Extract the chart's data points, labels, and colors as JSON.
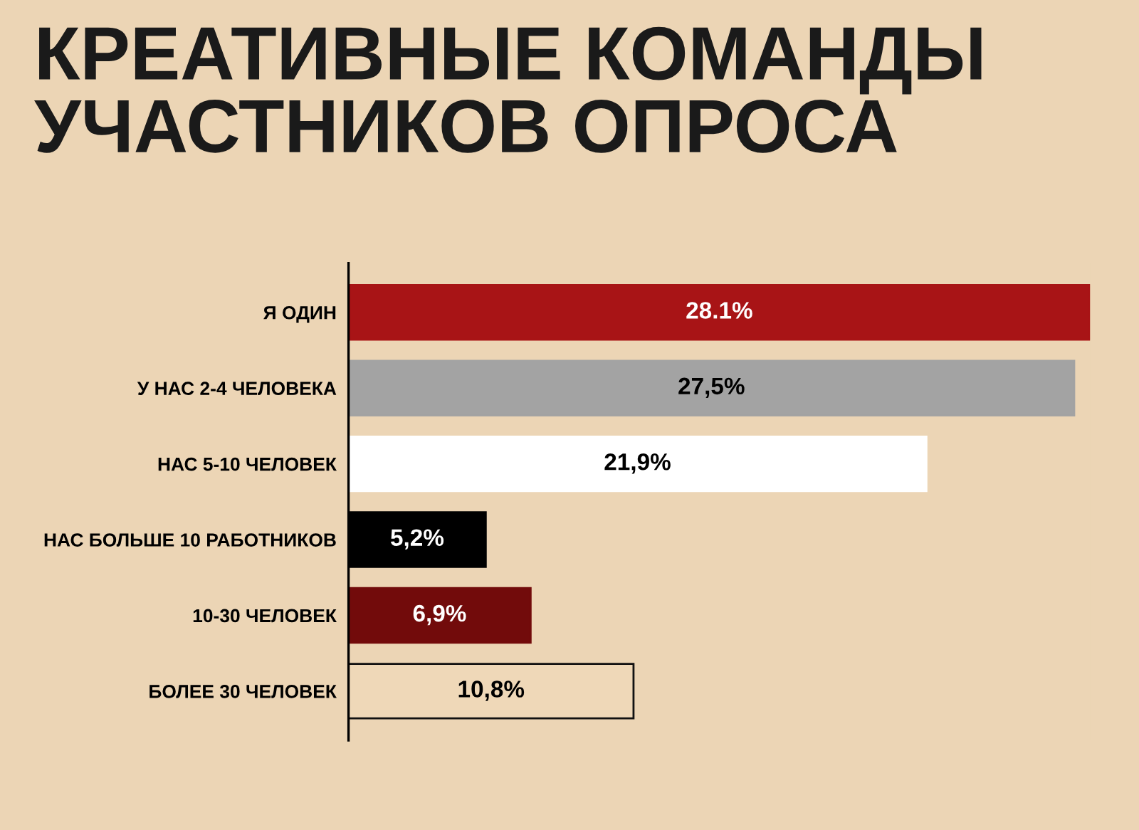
{
  "chart_data": {
    "type": "bar",
    "orientation": "horizontal",
    "title": "КРЕАТИВНЫЕ КОМАНДЫ\nУЧАСТНИКОВ ОПРОСА",
    "categories": [
      "Я ОДИН",
      "У НАС 2-4 ЧЕЛОВЕКА",
      "НАС 5-10 ЧЕЛОВЕК",
      "НАС БОЛЬШЕ 10 РАБОТНИКОВ",
      "10-30 ЧЕЛОВЕК",
      "БОЛЕЕ 30 ЧЕЛОВЕК"
    ],
    "values": [
      28.1,
      27.5,
      21.9,
      5.2,
      6.9,
      10.8
    ],
    "value_labels": [
      "28.1%",
      "27,5%",
      "21,9%",
      "5,2%",
      "6,9%",
      "10,8%"
    ],
    "colors": [
      "#a81416",
      "#a3a3a3",
      "#ffffff",
      "#000000",
      "#720b0b",
      "#efd8b8"
    ]
  }
}
